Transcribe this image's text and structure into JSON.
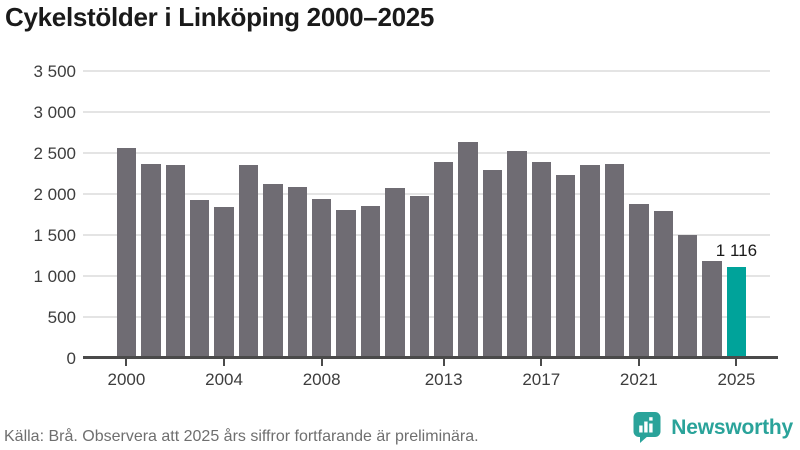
{
  "title": "Cykelstölder i Linköping 2000–2025",
  "chart_data": {
    "type": "bar",
    "categories": [
      "2000",
      "2001",
      "2002",
      "2003",
      "2004",
      "2005",
      "2006",
      "2007",
      "2008",
      "2009",
      "2010",
      "2011",
      "2012",
      "2013",
      "2014",
      "2015",
      "2016",
      "2017",
      "2018",
      "2019",
      "2020",
      "2021",
      "2022",
      "2023",
      "2024",
      "2025"
    ],
    "values": [
      2560,
      2370,
      2350,
      1930,
      1840,
      2350,
      2120,
      2090,
      1940,
      1810,
      1850,
      2070,
      1970,
      2390,
      2640,
      2290,
      2520,
      2390,
      2230,
      2350,
      2360,
      1880,
      1790,
      1500,
      1180,
      1116
    ],
    "title": "Cykelstölder i Linköping 2000–2025",
    "xlabel": "",
    "ylabel": "",
    "ylim": [
      0,
      3500
    ],
    "grid": true,
    "legend": "none",
    "y_tick_values": [
      0,
      500,
      1000,
      1500,
      2000,
      2500,
      3000,
      3500
    ],
    "y_tick_labels": [
      "0",
      "500",
      "1 000",
      "1 500",
      "2 000",
      "2 500",
      "3 000",
      "3 500"
    ],
    "x_tick_indices": [
      0,
      4,
      8,
      13,
      17,
      21,
      25
    ],
    "bar_color": "#6f6c73",
    "highlight_index": 25,
    "highlight_color": "#00a39a",
    "highlight_label": "1 116"
  },
  "footer": {
    "source": "Källa: Brå. Observera att 2025 års siffror fortfarande är preliminära."
  },
  "brand": {
    "name": "Newsworthy",
    "color": "#2aa39a",
    "icon": "bar-chart-speech-bubble-icon"
  }
}
